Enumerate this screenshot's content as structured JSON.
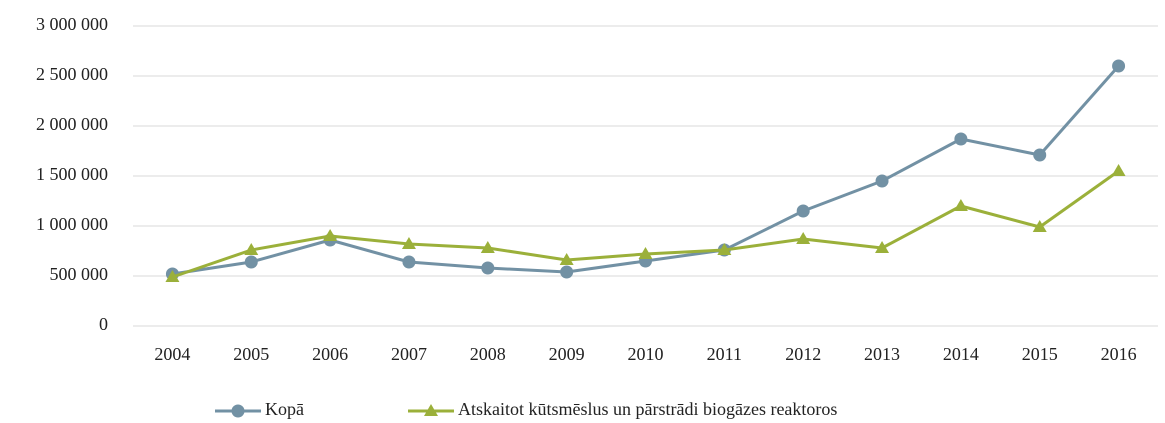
{
  "chart_data": {
    "type": "line",
    "categories": [
      "2004",
      "2005",
      "2006",
      "2007",
      "2008",
      "2009",
      "2010",
      "2011",
      "2012",
      "2013",
      "2014",
      "2015",
      "2016"
    ],
    "series": [
      {
        "name": "Kopā",
        "color": "#7291a4",
        "marker": "circle",
        "values": [
          520000,
          640000,
          860000,
          640000,
          580000,
          540000,
          650000,
          760000,
          1150000,
          1450000,
          1870000,
          1710000,
          2600000
        ]
      },
      {
        "name": "Atskaitot kūtsmēslus un pārstrādi biogāzes reaktoros",
        "color": "#9bb03a",
        "marker": "triangle",
        "values": [
          490000,
          760000,
          900000,
          820000,
          780000,
          660000,
          720000,
          760000,
          870000,
          780000,
          1200000,
          990000,
          1550000
        ]
      }
    ],
    "ylim": [
      0,
      3000000
    ],
    "yticks": [
      0,
      {
        "value": 500000,
        "label": "500 000"
      },
      {
        "value": 1000000,
        "label": "1 000 000"
      },
      {
        "value": 1500000,
        "label": "1 500 000"
      },
      {
        "value": 2000000,
        "label": "2 000 000"
      },
      {
        "value": 2500000,
        "label": "2 500 000"
      },
      {
        "value": 3000000,
        "label": "3 000 000"
      }
    ],
    "grid": true,
    "legend": "bottom"
  }
}
